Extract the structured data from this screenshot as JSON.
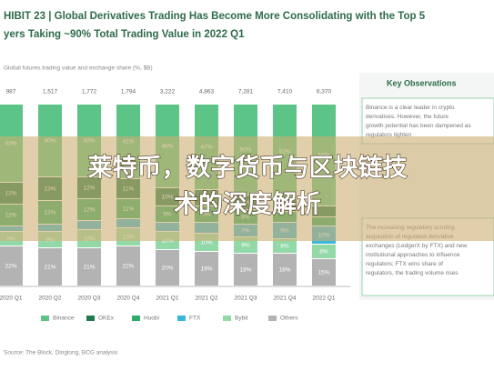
{
  "chart_data": {
    "type": "bar",
    "title": "HIBIT 23 | Global Derivatives Trading Has Become More Consolidating with the Top 5",
    "subtitle": "yers Taking ~90% Total Trading Value in 2022 Q1",
    "axis_label": "Global futures trading value and exchange share (%, $B)",
    "categories": [
      "2020 Q1",
      "2020 Q2",
      "2020 Q3",
      "2020 Q4",
      "2021 Q1",
      "2021 Q2",
      "2021 Q3",
      "2021 Q4",
      "2022 Q1"
    ],
    "ylim": [
      0,
      100
    ],
    "series": [
      {
        "name": "Binance",
        "color": "#5cc486",
        "values": [
          43,
          40,
          40,
          41,
          46,
          47,
          50,
          52,
          56
        ],
        "value_labels": [
          "43%",
          "40%",
          "40%",
          "41%",
          "46%",
          "47%",
          "50%",
          "52%",
          "56%"
        ]
      },
      {
        "name": "OKEx",
        "color": "#1f7a4d",
        "values": [
          12,
          13,
          12,
          11,
          10,
          9,
          8,
          7,
          6
        ],
        "value_labels": [
          "12%",
          "13%",
          "12%",
          "11%",
          "10%",
          "9%",
          "8%",
          "7%",
          "6%"
        ]
      },
      {
        "name": "Huobi",
        "color": "#2eaa6a",
        "values": [
          12,
          13,
          12,
          11,
          9,
          9,
          8,
          6,
          5
        ],
        "value_labels": [
          "12%",
          "13%",
          "12%",
          "11%",
          "9%",
          "9%",
          "8%",
          "6%",
          "5%"
        ]
      },
      {
        "name": "FTX",
        "color": "#3ab7d8",
        "values": [
          3,
          4,
          5,
          5,
          5,
          6,
          7,
          9,
          10
        ],
        "value_labels": [
          "3%",
          "4%",
          "5%",
          "5%",
          "5%",
          "6%",
          "7%",
          "9%",
          "10%"
        ]
      },
      {
        "name": "Bybit",
        "color": "#93d9a8",
        "values": [
          8,
          9,
          10,
          10,
          10,
          10,
          9,
          8,
          8
        ],
        "value_labels": [
          "8%",
          "9%",
          "10%",
          "10%",
          "10%",
          "10%",
          "9%",
          "8%",
          "8%"
        ]
      },
      {
        "name": "Others",
        "color": "#b3b3b3",
        "values": [
          22,
          21,
          21,
          22,
          20,
          19,
          18,
          18,
          15
        ],
        "value_labels": [
          "22%",
          "21%",
          "21%",
          "22%",
          "20%",
          "19%",
          "18%",
          "18%",
          "15%"
        ]
      }
    ],
    "totals": {
      "values": [
        987,
        1517,
        1772,
        1794,
        3222,
        4863,
        7281,
        7410,
        6370
      ],
      "value_labels": [
        "987",
        "1,517",
        "1,772",
        "1,794",
        "3,222",
        "4,863",
        "7,281",
        "7,410",
        "6,370"
      ]
    },
    "panel_title": "Key Observations",
    "observations": [
      "Binance is a clear leader in crypto derivatives. However, the future growth potential has been dampened as regulators tighten",
      "The increasing regulatory scrutiny, acquisition of regulated derivative exchanges (LedgerX by FTX) and new institutional approaches to influence regulators; FTX wins share of regulators, the trading volume rises"
    ],
    "source": "Source: The Block, Dinglong, BCG analysis",
    "overlay_text": [
      "莱特币，数字货币与区块链技",
      "术的深度解析"
    ]
  }
}
